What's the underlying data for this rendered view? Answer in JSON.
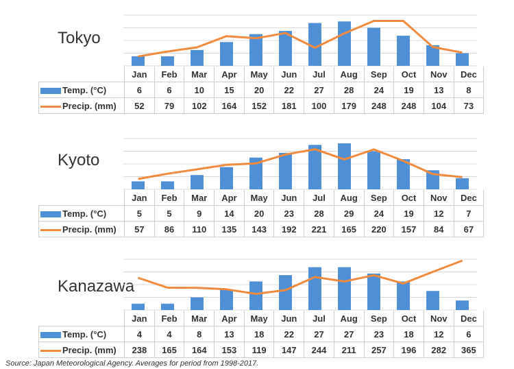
{
  "source_note": "Source: Japan Meteorological Agency. Averages for period from 1998-2017.",
  "colors": {
    "temp_bar": "#4e8fd6",
    "precip_line": "#f08a3c",
    "grid": "#d9d9d9"
  },
  "chart_data": [
    {
      "type": "bar",
      "title": "Tokyo",
      "categories": [
        "Jan",
        "Feb",
        "Mar",
        "Apr",
        "May",
        "Jun",
        "Jul",
        "Aug",
        "Sep",
        "Oct",
        "Nov",
        "Dec"
      ],
      "series": [
        {
          "name": "Temp. (°C)",
          "kind": "bar",
          "values": [
            6,
            6,
            10,
            15,
            20,
            22,
            27,
            28,
            24,
            19,
            13,
            8
          ]
        },
        {
          "name": "Precip. (mm)",
          "kind": "line",
          "values": [
            52,
            79,
            102,
            164,
            152,
            181,
            100,
            179,
            248,
            248,
            104,
            73
          ]
        }
      ]
    },
    {
      "type": "bar",
      "title": "Kyoto",
      "categories": [
        "Jan",
        "Feb",
        "Mar",
        "Apr",
        "May",
        "Jun",
        "Jul",
        "Aug",
        "Sep",
        "Oct",
        "Nov",
        "Dec"
      ],
      "series": [
        {
          "name": "Temp. (°C)",
          "kind": "bar",
          "values": [
            5,
            5,
            9,
            14,
            20,
            23,
            28,
            29,
            24,
            19,
            12,
            7
          ]
        },
        {
          "name": "Precip. (mm)",
          "kind": "line",
          "values": [
            57,
            86,
            110,
            135,
            143,
            192,
            221,
            165,
            220,
            157,
            84,
            67
          ]
        }
      ]
    },
    {
      "type": "bar",
      "title": "Kanazawa",
      "categories": [
        "Jan",
        "Feb",
        "Mar",
        "Apr",
        "May",
        "Jun",
        "Jul",
        "Aug",
        "Sep",
        "Oct",
        "Nov",
        "Dec"
      ],
      "series": [
        {
          "name": "Temp. (°C)",
          "kind": "bar",
          "values": [
            4,
            4,
            8,
            13,
            18,
            22,
            27,
            27,
            23,
            18,
            12,
            6
          ]
        },
        {
          "name": "Precip. (mm)",
          "kind": "line",
          "values": [
            238,
            165,
            164,
            153,
            119,
            147,
            244,
            211,
            257,
            196,
            282,
            365
          ]
        }
      ]
    }
  ]
}
